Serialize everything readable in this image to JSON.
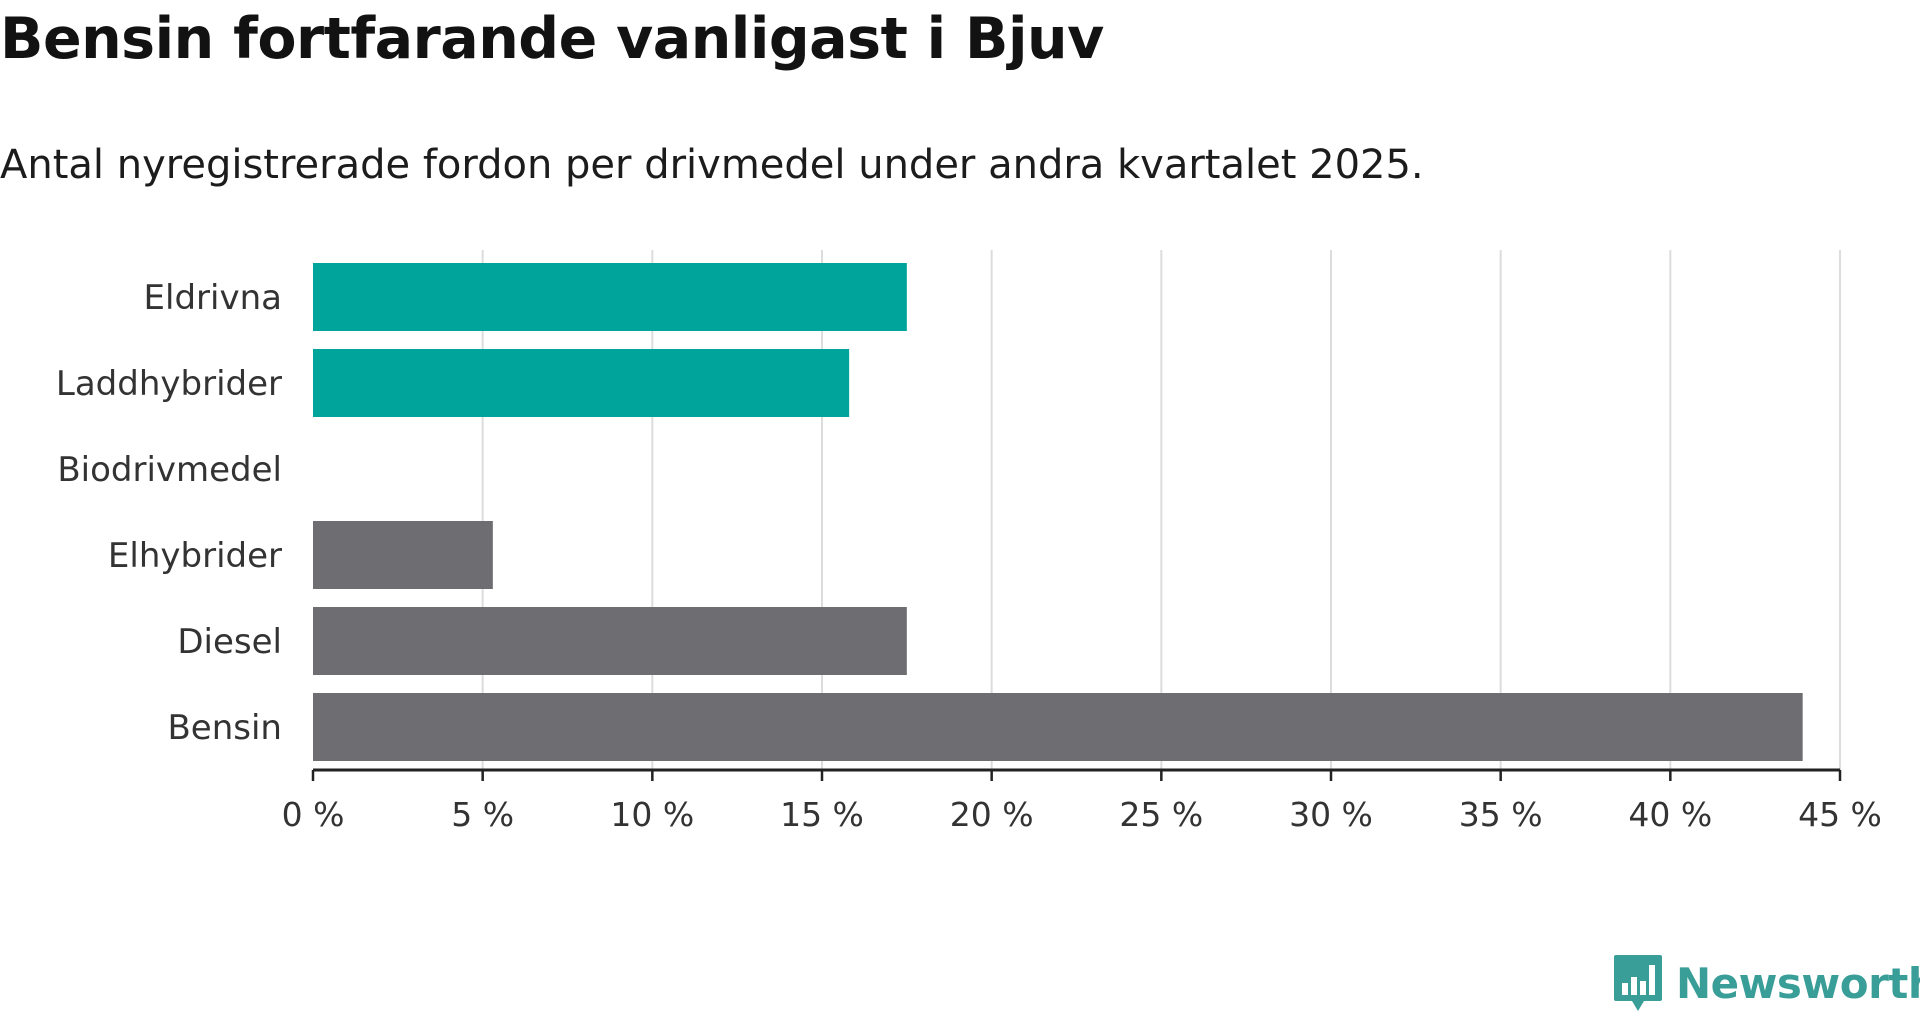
{
  "title": "Bensin fortfarande vanligast i Bjuv",
  "subtitle": "Antal nyregistrerade fordon per drivmedel under andra kvartalet 2025.",
  "brand": {
    "name": "Newsworthy",
    "icon": "newsworthy-logo-icon",
    "color": "#3a9e98"
  },
  "chart_data": {
    "type": "bar",
    "orientation": "horizontal",
    "categories": [
      "Eldrivna",
      "Laddhybrider",
      "Biodrivmedel",
      "Elhybrider",
      "Diesel",
      "Bensin"
    ],
    "values": [
      17.5,
      15.8,
      0,
      5.3,
      17.5,
      43.9
    ],
    "colors": [
      "#00a49a",
      "#00a49a",
      "#00a49a",
      "#6e6d72",
      "#6e6d72",
      "#6e6d72"
    ],
    "xlim": [
      0,
      45
    ],
    "xticks": [
      0,
      5,
      10,
      15,
      20,
      25,
      30,
      35,
      40,
      45
    ],
    "xtick_labels": [
      "0 %",
      "5 %",
      "10 %",
      "15 %",
      "20 %",
      "25 %",
      "30 %",
      "35 %",
      "40 %",
      "45 %"
    ],
    "grid": "vertical",
    "title": "Bensin fortfarande vanligast i Bjuv",
    "subtitle": "Antal nyregistrerade fordon per drivmedel under andra kvartalet 2025.",
    "xlabel": "",
    "ylabel": ""
  }
}
